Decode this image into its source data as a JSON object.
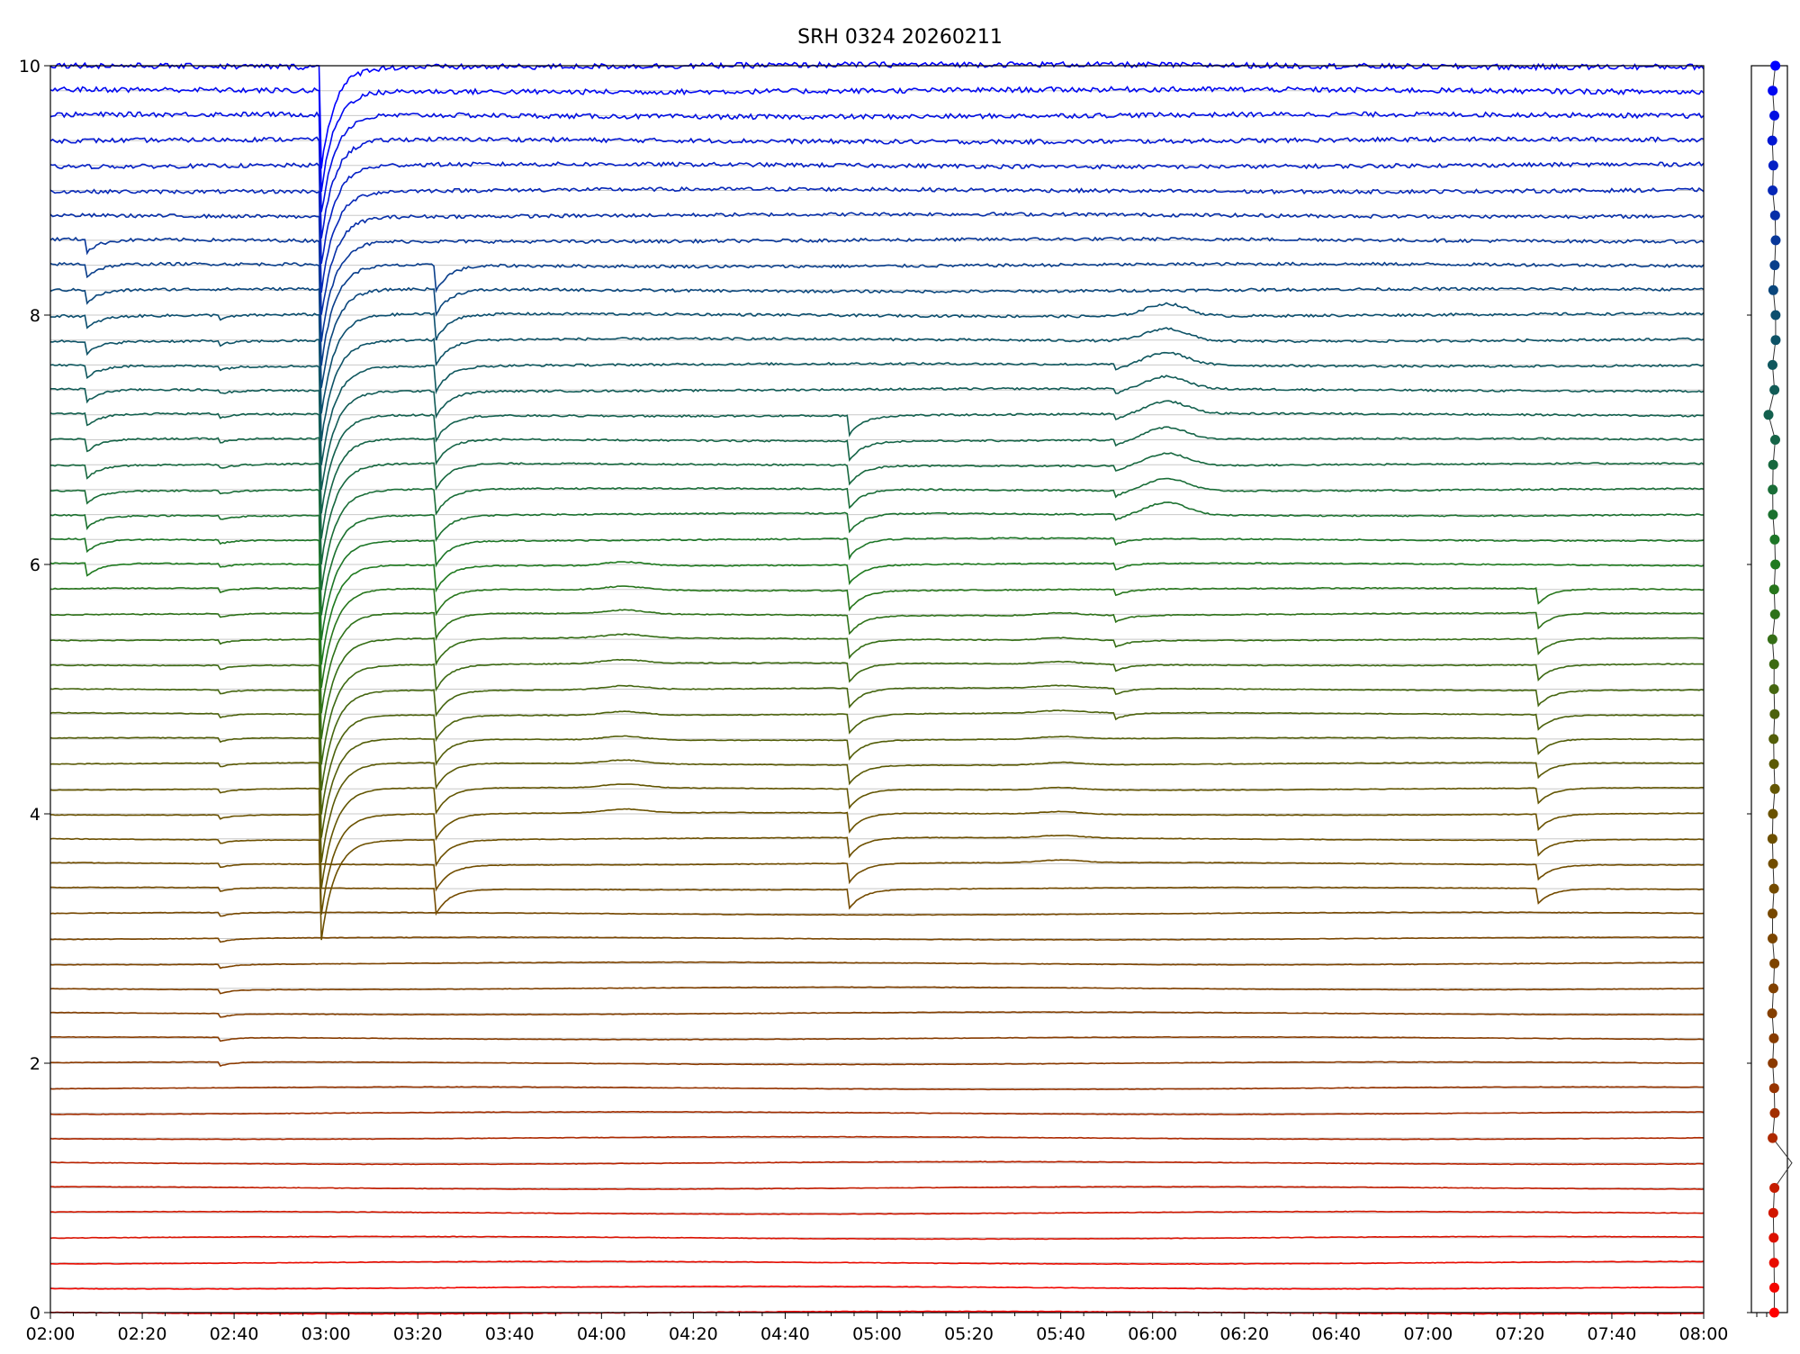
{
  "chart_data": {
    "type": "line",
    "title": "SRH 0324 20260211",
    "xlabel": "",
    "ylabel": "",
    "xlim": [
      "02:00",
      "08:00"
    ],
    "ylim": [
      0,
      10
    ],
    "x_ticks": [
      "02:00",
      "02:20",
      "02:40",
      "03:00",
      "03:20",
      "03:40",
      "04:00",
      "04:20",
      "04:40",
      "05:00",
      "05:20",
      "05:40",
      "06:00",
      "06:20",
      "06:40",
      "07:00",
      "07:20",
      "07:40",
      "08:00"
    ],
    "y_ticks": [
      0,
      2,
      4,
      6,
      8
    ],
    "y_top_label": "10",
    "grid": "horizontal lines at each trace baseline",
    "series_count": 51,
    "series_baseline_spacing": 0.2,
    "series_color_ramp": [
      "#ff0000",
      "#8b3a00",
      "#6a5200",
      "#1f7a1f",
      "#0b4e6e",
      "#0000ff"
    ],
    "common_events": [
      {
        "time": "02:08",
        "depth": 0.1,
        "range": [
          30,
          43
        ]
      },
      {
        "time": "02:37",
        "depth": 0.03,
        "range": [
          10,
          40
        ]
      },
      {
        "time": "02:59",
        "depth": 0.8,
        "range": [
          19,
          50
        ]
      },
      {
        "time": "03:24",
        "depth": 0.2,
        "range": [
          17,
          42
        ]
      },
      {
        "time": "04:54",
        "depth": 0.15,
        "range": [
          17,
          36
        ]
      },
      {
        "time": "05:52",
        "depth": 0.05,
        "range": [
          24,
          38
        ]
      },
      {
        "time": "07:24",
        "depth": 0.12,
        "range": [
          17,
          29
        ]
      }
    ],
    "bumps": [
      {
        "time": "06:03",
        "height": 0.1,
        "range": [
          32,
          40
        ]
      },
      {
        "time": "04:05",
        "height": 0.03,
        "range": [
          20,
          30
        ]
      },
      {
        "time": "05:40",
        "height": 0.02,
        "range": [
          18,
          28
        ]
      }
    ],
    "side_panel": {
      "type": "scatter",
      "count": 51,
      "marker": "circle",
      "note_outlier_index": 6
    }
  }
}
